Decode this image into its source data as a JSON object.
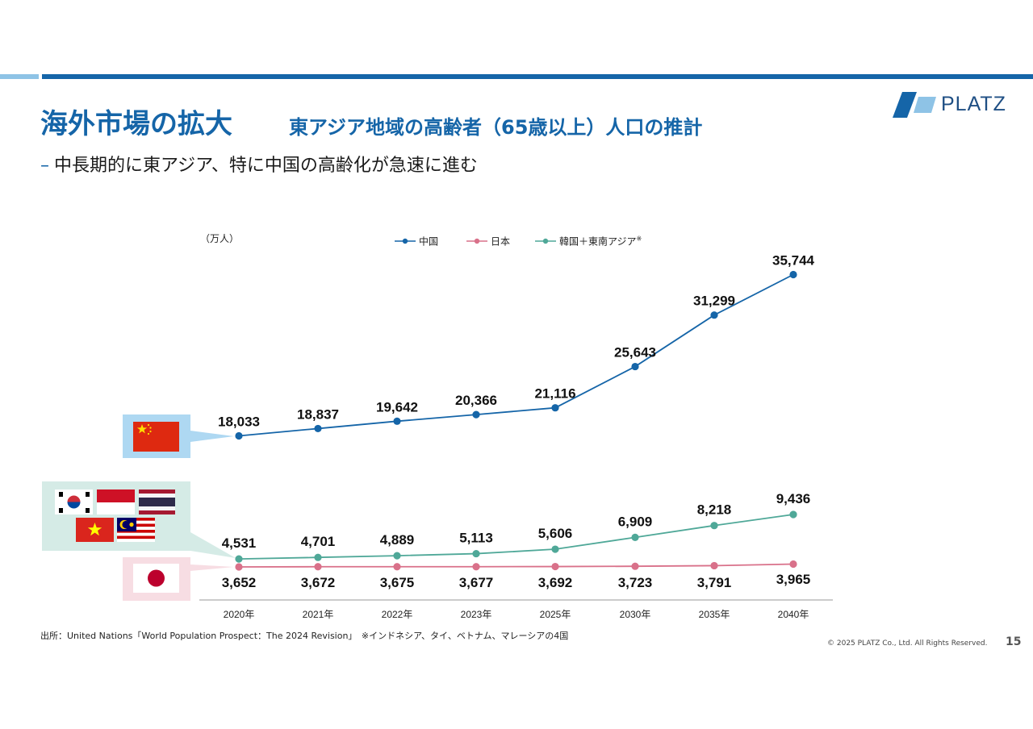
{
  "page": {
    "title": "海外市場の拡大",
    "subtitle": "東アジア地域の高齢者（65歳以上）人口の推計",
    "bullet": "中長期的に東アジア、特に中国の高齢化が急速に進む",
    "bullet_marker": "–",
    "logo_text": "PLATZ",
    "source_note": "出所：United Nations「World Population Prospect：The 2024 Revision」　※インドネシア、タイ、ベトナム、マレーシアの4国",
    "copyright": "© 2025 PLATZ Co., Ltd. All Rights Reserved.",
    "page_number": "15"
  },
  "flags": {
    "china_group": [
      "china-flag"
    ],
    "asia_group": [
      "south-korea-flag",
      "indonesia-flag",
      "thailand-flag",
      "vietnam-flag",
      "malaysia-flag"
    ],
    "japan_group": [
      "japan-flag"
    ]
  },
  "chart_data": {
    "type": "line",
    "unit_label": "（万人）",
    "categories": [
      "2020年",
      "2021年",
      "2022年",
      "2023年",
      "2025年",
      "2030年",
      "2035年",
      "2040年"
    ],
    "series": [
      {
        "name": "中国",
        "color": "#1565a8",
        "values": [
          18033,
          18837,
          19642,
          20366,
          21116,
          25643,
          31299,
          35744
        ],
        "labels": [
          "18,033",
          "18,837",
          "19,642",
          "20,366",
          "21,116",
          "25,643",
          "31,299",
          "35,744"
        ]
      },
      {
        "name": "日本",
        "color": "#d9718a",
        "values": [
          3652,
          3672,
          3675,
          3677,
          3692,
          3723,
          3791,
          3965
        ],
        "labels": [
          "3,652",
          "3,672",
          "3,675",
          "3,677",
          "3,692",
          "3,723",
          "3,791",
          "3,965"
        ]
      },
      {
        "name": "韓国＋東南アジア",
        "name_mark": "※",
        "color": "#4fa898",
        "values": [
          4531,
          4701,
          4889,
          5113,
          5606,
          6909,
          8218,
          9436
        ],
        "labels": [
          "4,531",
          "4,701",
          "4,889",
          "5,113",
          "5,606",
          "6,909",
          "8,218",
          "9,436"
        ]
      }
    ],
    "legend_position": "top-center",
    "grid": false
  },
  "colors": {
    "brand": "#1565a8",
    "light": "#8ec3e6",
    "china_bubble": "#aed8f2",
    "asia_bubble": "#d5ebe6",
    "japan_bubble": "#f7dde3"
  }
}
